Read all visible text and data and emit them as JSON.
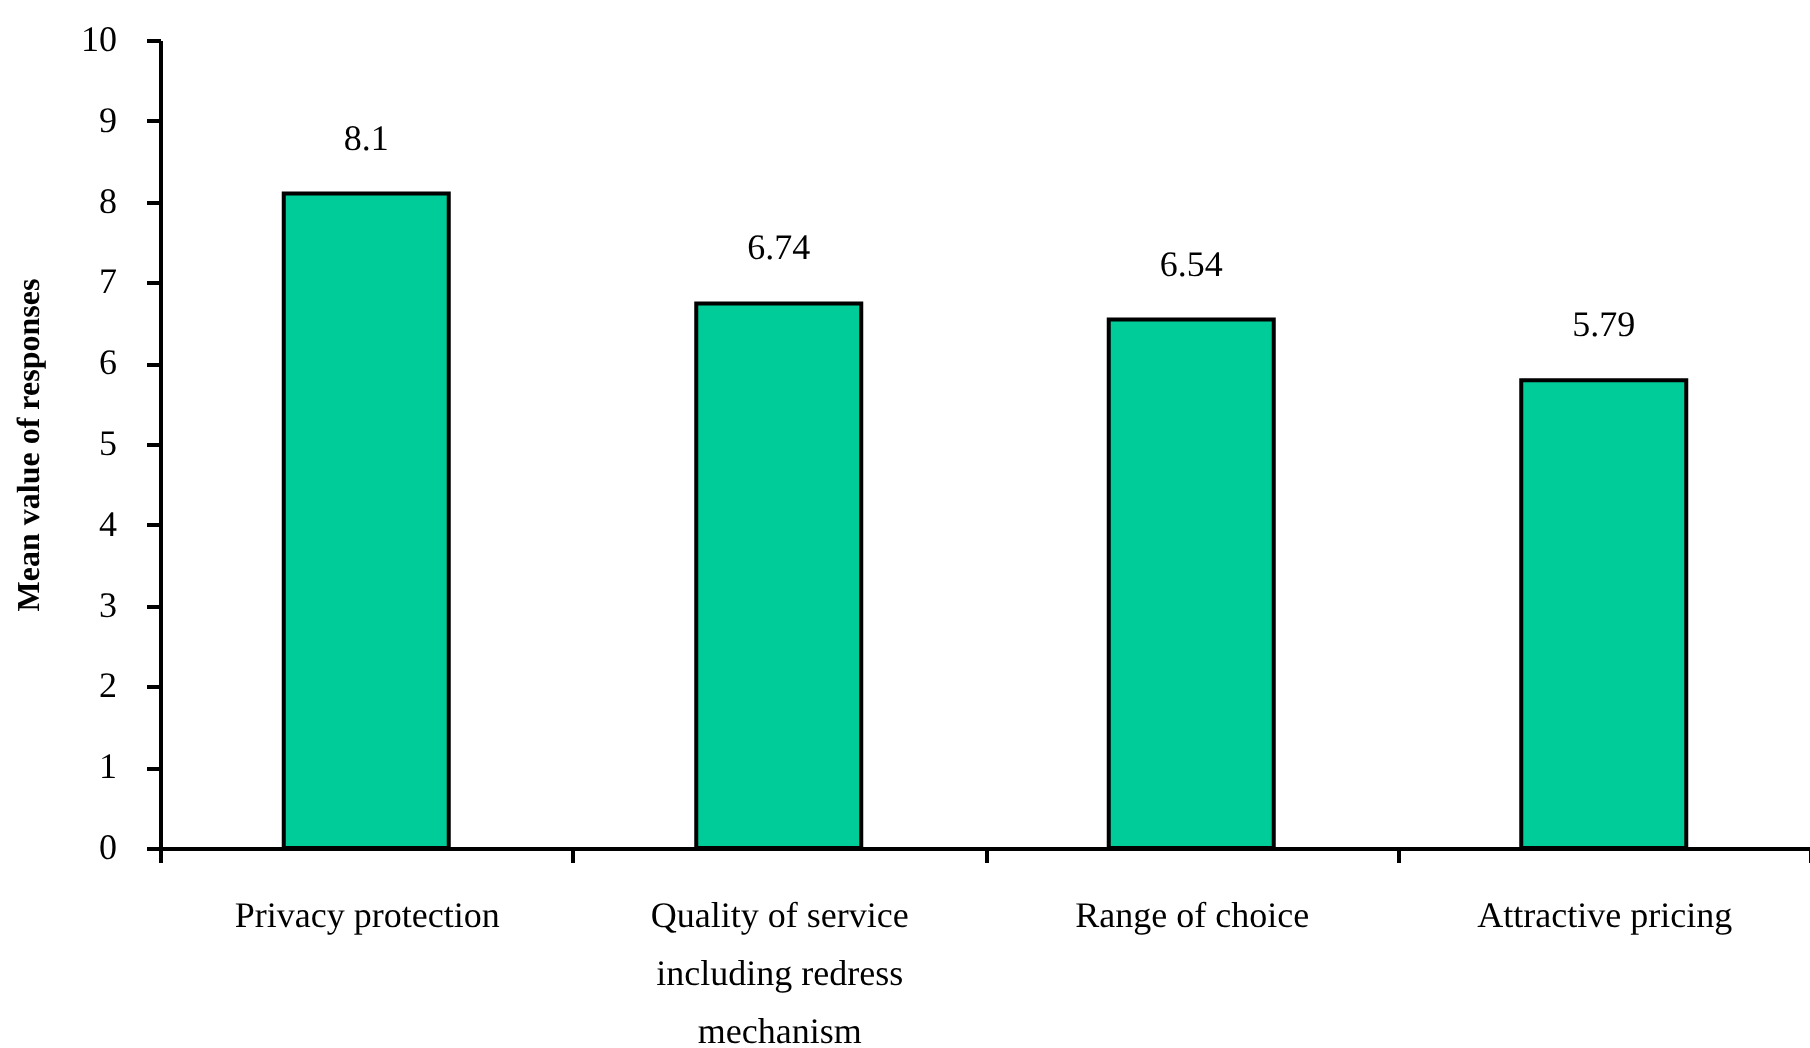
{
  "chart_data": {
    "type": "bar",
    "ylabel": "Mean value of responses",
    "categories": [
      "Privacy protection",
      "Quality of service including redress mechanism",
      "Range of choice",
      "Attractive pricing"
    ],
    "values": [
      8.1,
      6.74,
      6.54,
      5.79
    ],
    "color": "#00cc99",
    "ylim": [
      0,
      10
    ],
    "yticks": [
      0,
      1,
      2,
      3,
      4,
      5,
      6,
      7,
      8,
      9,
      10
    ],
    "data_labels": true
  }
}
